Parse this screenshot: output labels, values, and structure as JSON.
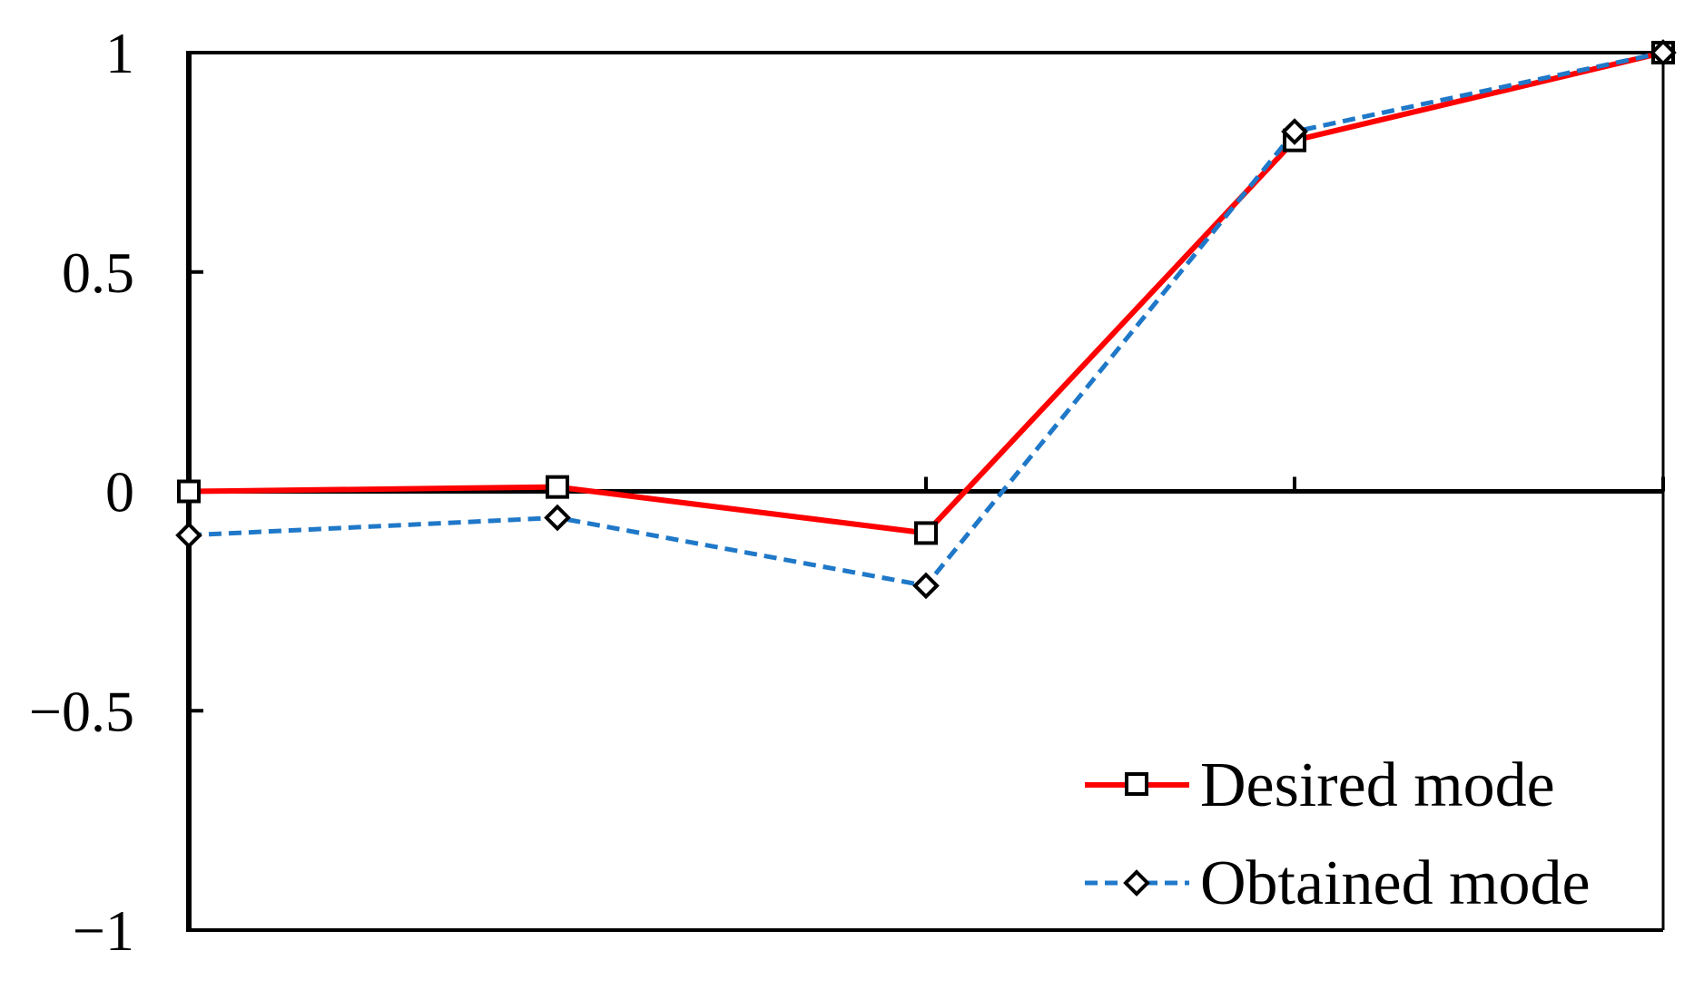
{
  "chart_data": {
    "type": "line",
    "x": [
      1,
      2,
      3,
      4,
      5
    ],
    "ylim": [
      -1,
      1
    ],
    "yticks": [
      {
        "value": 1,
        "label": "1"
      },
      {
        "value": 0.5,
        "label": "0.5"
      },
      {
        "value": 0,
        "label": "0"
      },
      {
        "value": -0.5,
        "label": "−0.5"
      },
      {
        "value": -1,
        "label": "−1"
      }
    ],
    "grid": false,
    "legend_position": "bottom-right",
    "series": [
      {
        "name": "Desired mode",
        "values": [
          0,
          0.01,
          -0.095,
          0.8,
          1.0
        ],
        "color": "#ff0000",
        "line_style": "solid",
        "marker": "square"
      },
      {
        "name": "Obtained mode",
        "values": [
          -0.1,
          -0.06,
          -0.215,
          0.82,
          1.0
        ],
        "color": "#1f78c8",
        "line_style": "dashed",
        "marker": "diamond"
      }
    ]
  }
}
